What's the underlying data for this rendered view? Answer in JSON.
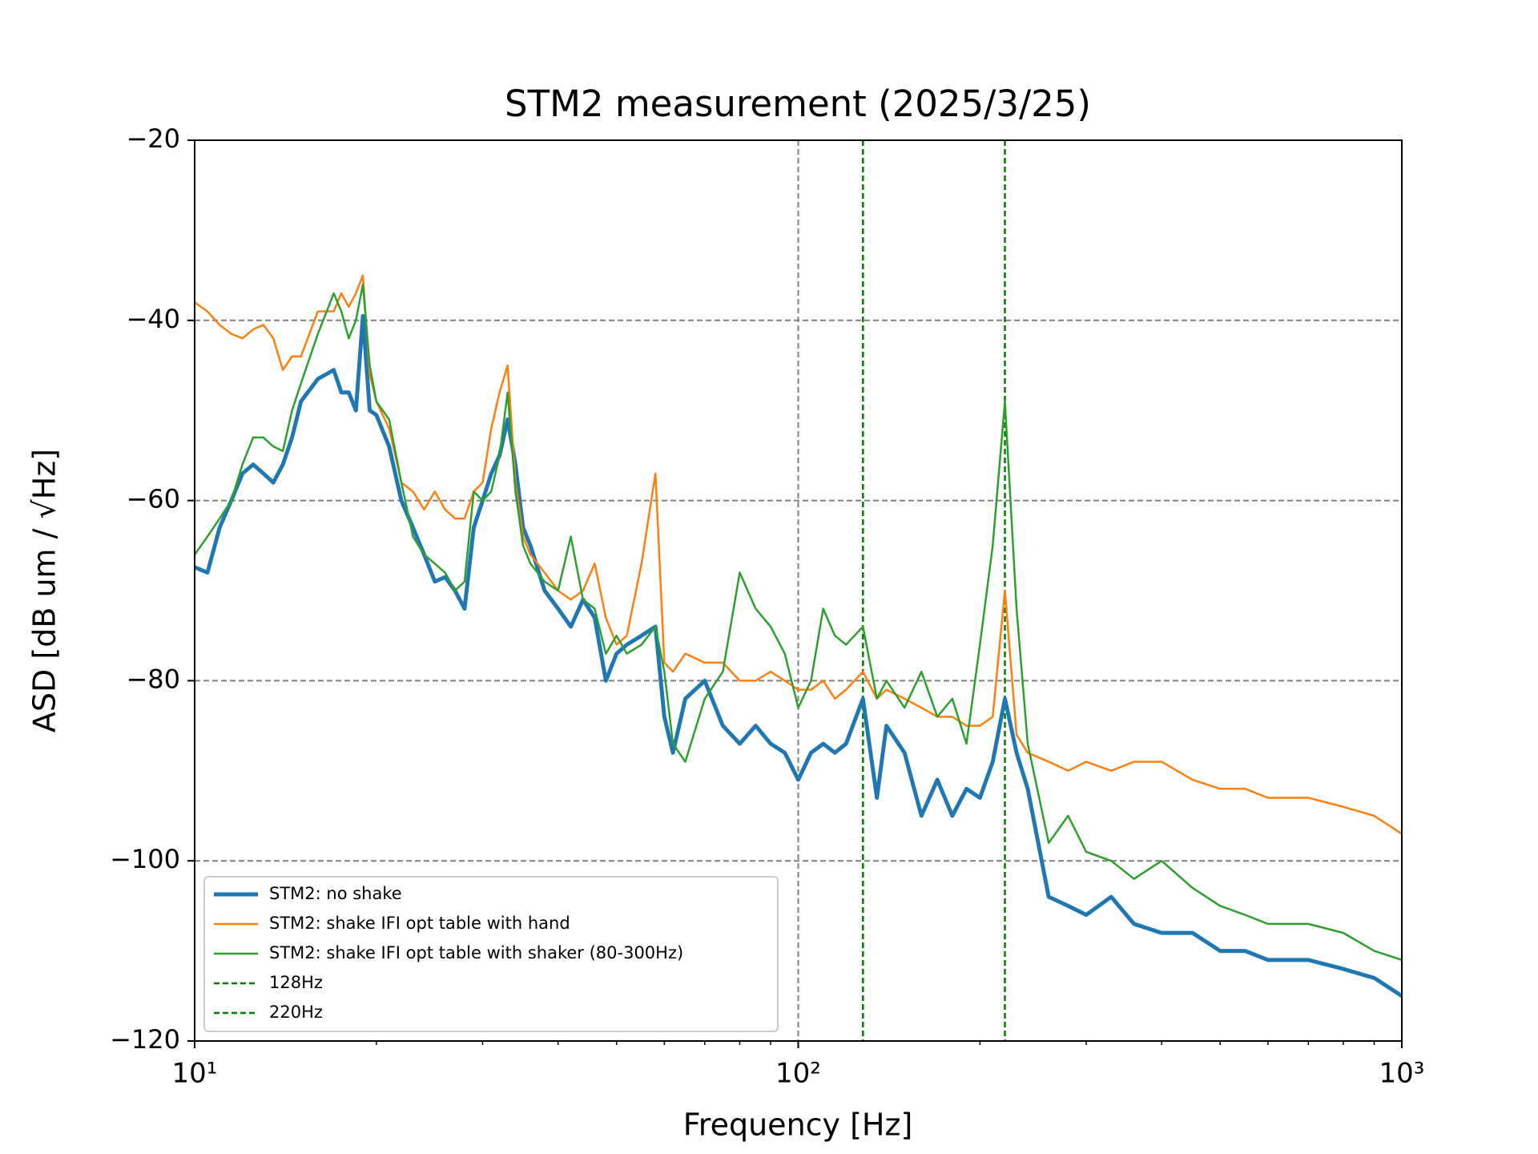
{
  "chart_data": {
    "type": "line",
    "title": "STM2 measurement (2025/3/25)",
    "xlabel": "Frequency [Hz]",
    "ylabel": "ASD [dB um / √Hz]",
    "xscale": "log",
    "xlim": [
      10,
      1000
    ],
    "ylim": [
      -120,
      -20
    ],
    "xticks": [
      {
        "value": 10,
        "label": "10¹"
      },
      {
        "value": 100,
        "label": "10²"
      },
      {
        "value": 1000,
        "label": "10³"
      }
    ],
    "xminorticks": [
      20,
      30,
      40,
      50,
      60,
      70,
      80,
      90,
      200,
      300,
      400,
      500,
      600,
      700,
      800,
      900
    ],
    "yticks": [
      {
        "value": -120,
        "label": "−120"
      },
      {
        "value": -100,
        "label": "−100"
      },
      {
        "value": -80,
        "label": "−80"
      },
      {
        "value": -60,
        "label": "−60"
      },
      {
        "value": -40,
        "label": "−40"
      },
      {
        "value": -20,
        "label": "−20"
      }
    ],
    "grid": true,
    "legend": "lower left",
    "x": [
      10,
      10.5,
      11,
      11.5,
      12,
      12.5,
      13,
      13.5,
      14,
      14.5,
      15,
      16,
      17,
      17.5,
      18,
      18.5,
      19,
      19.5,
      20,
      21,
      22,
      23,
      24,
      25,
      26,
      27,
      28,
      29,
      30,
      31,
      32,
      33,
      34,
      35,
      36,
      38,
      40,
      42,
      44,
      46,
      48,
      50,
      52,
      55,
      58,
      60,
      62,
      65,
      70,
      75,
      80,
      85,
      90,
      95,
      100,
      105,
      110,
      115,
      120,
      128,
      135,
      140,
      150,
      160,
      170,
      180,
      190,
      200,
      210,
      220,
      230,
      240,
      260,
      280,
      300,
      330,
      360,
      400,
      450,
      500,
      550,
      600,
      700,
      800,
      900,
      1000
    ],
    "series": [
      {
        "name": "STM2: no shake",
        "color": "#1f77b4",
        "width": 4,
        "values": [
          -67.4,
          -68,
          -63,
          -60,
          -57,
          -56,
          -57,
          -58,
          -56,
          -53,
          -49,
          -46.5,
          -45.5,
          -48,
          -48,
          -50,
          -39.5,
          -50,
          -50.5,
          -54,
          -60,
          -63,
          -66,
          -69,
          -68.5,
          -70,
          -72,
          -63,
          -60,
          -57,
          -55,
          -51,
          -56,
          -63,
          -65,
          -70,
          -72,
          -74,
          -71,
          -73,
          -80,
          -77,
          -76,
          -75,
          -74,
          -84,
          -88,
          -82,
          -80,
          -85,
          -87,
          -85,
          -87,
          -88,
          -91,
          -88,
          -87,
          -88,
          -87,
          -82,
          -93,
          -85,
          -88,
          -95,
          -91,
          -95,
          -92,
          -93,
          -89,
          -82,
          -88,
          -92,
          -104,
          -105,
          -106,
          -104,
          -107,
          -108,
          -108,
          -110,
          -110,
          -111,
          -111,
          -112,
          -113,
          -115
        ]
      },
      {
        "name": "STM2: shake IFI opt table with hand",
        "color": "#ff7f0e",
        "width": 2,
        "values": [
          -38,
          -39,
          -40.5,
          -41.5,
          -42,
          -41,
          -40.5,
          -42,
          -45.5,
          -44,
          -44,
          -39,
          -39,
          -37,
          -38.5,
          -37,
          -35,
          -46,
          -49,
          -52,
          -58,
          -59,
          -61,
          -59,
          -61,
          -62,
          -62,
          -59,
          -58,
          -52,
          -48,
          -45,
          -58,
          -64,
          -66,
          -68,
          -70,
          -71,
          -70,
          -67,
          -73,
          -76,
          -75,
          -67,
          -57,
          -78,
          -79,
          -77,
          -78,
          -78,
          -80,
          -80,
          -79,
          -80,
          -81,
          -81,
          -80,
          -82,
          -81,
          -79,
          -82,
          -81,
          -82,
          -83,
          -84,
          -84,
          -85,
          -85,
          -84,
          -70,
          -86,
          -88,
          -89,
          -90,
          -89,
          -90,
          -89,
          -89,
          -91,
          -92,
          -92,
          -93,
          -93,
          -94,
          -95,
          -97
        ]
      },
      {
        "name": "STM2: shake IFI opt table with shaker (80-300Hz)",
        "color": "#2ca02c",
        "width": 2,
        "values": [
          -66,
          -64,
          -62,
          -60,
          -56,
          -53,
          -53,
          -54,
          -54.5,
          -50,
          -47,
          -41.5,
          -37,
          -39,
          -42,
          -40,
          -36,
          -45,
          -49,
          -51,
          -58,
          -64,
          -66,
          -67,
          -68,
          -70,
          -69,
          -59,
          -60,
          -59,
          -55,
          -48,
          -59,
          -65,
          -67,
          -69,
          -70,
          -64,
          -71,
          -72,
          -77,
          -75,
          -77,
          -76,
          -74,
          -79,
          -87,
          -89,
          -82,
          -79,
          -68,
          -72,
          -74,
          -77,
          -83,
          -80,
          -72,
          -75,
          -76,
          -74,
          -82,
          -80,
          -83,
          -79,
          -84,
          -82,
          -87,
          -76,
          -65,
          -49,
          -72,
          -87,
          -98,
          -95,
          -99,
          -100,
          -102,
          -100,
          -103,
          -105,
          -106,
          -107,
          -107,
          -108,
          -110,
          -111
        ]
      }
    ],
    "vlines": [
      {
        "name": "128Hz",
        "x": 128,
        "color": "green"
      },
      {
        "name": "220Hz",
        "x": 220,
        "color": "green"
      }
    ]
  }
}
